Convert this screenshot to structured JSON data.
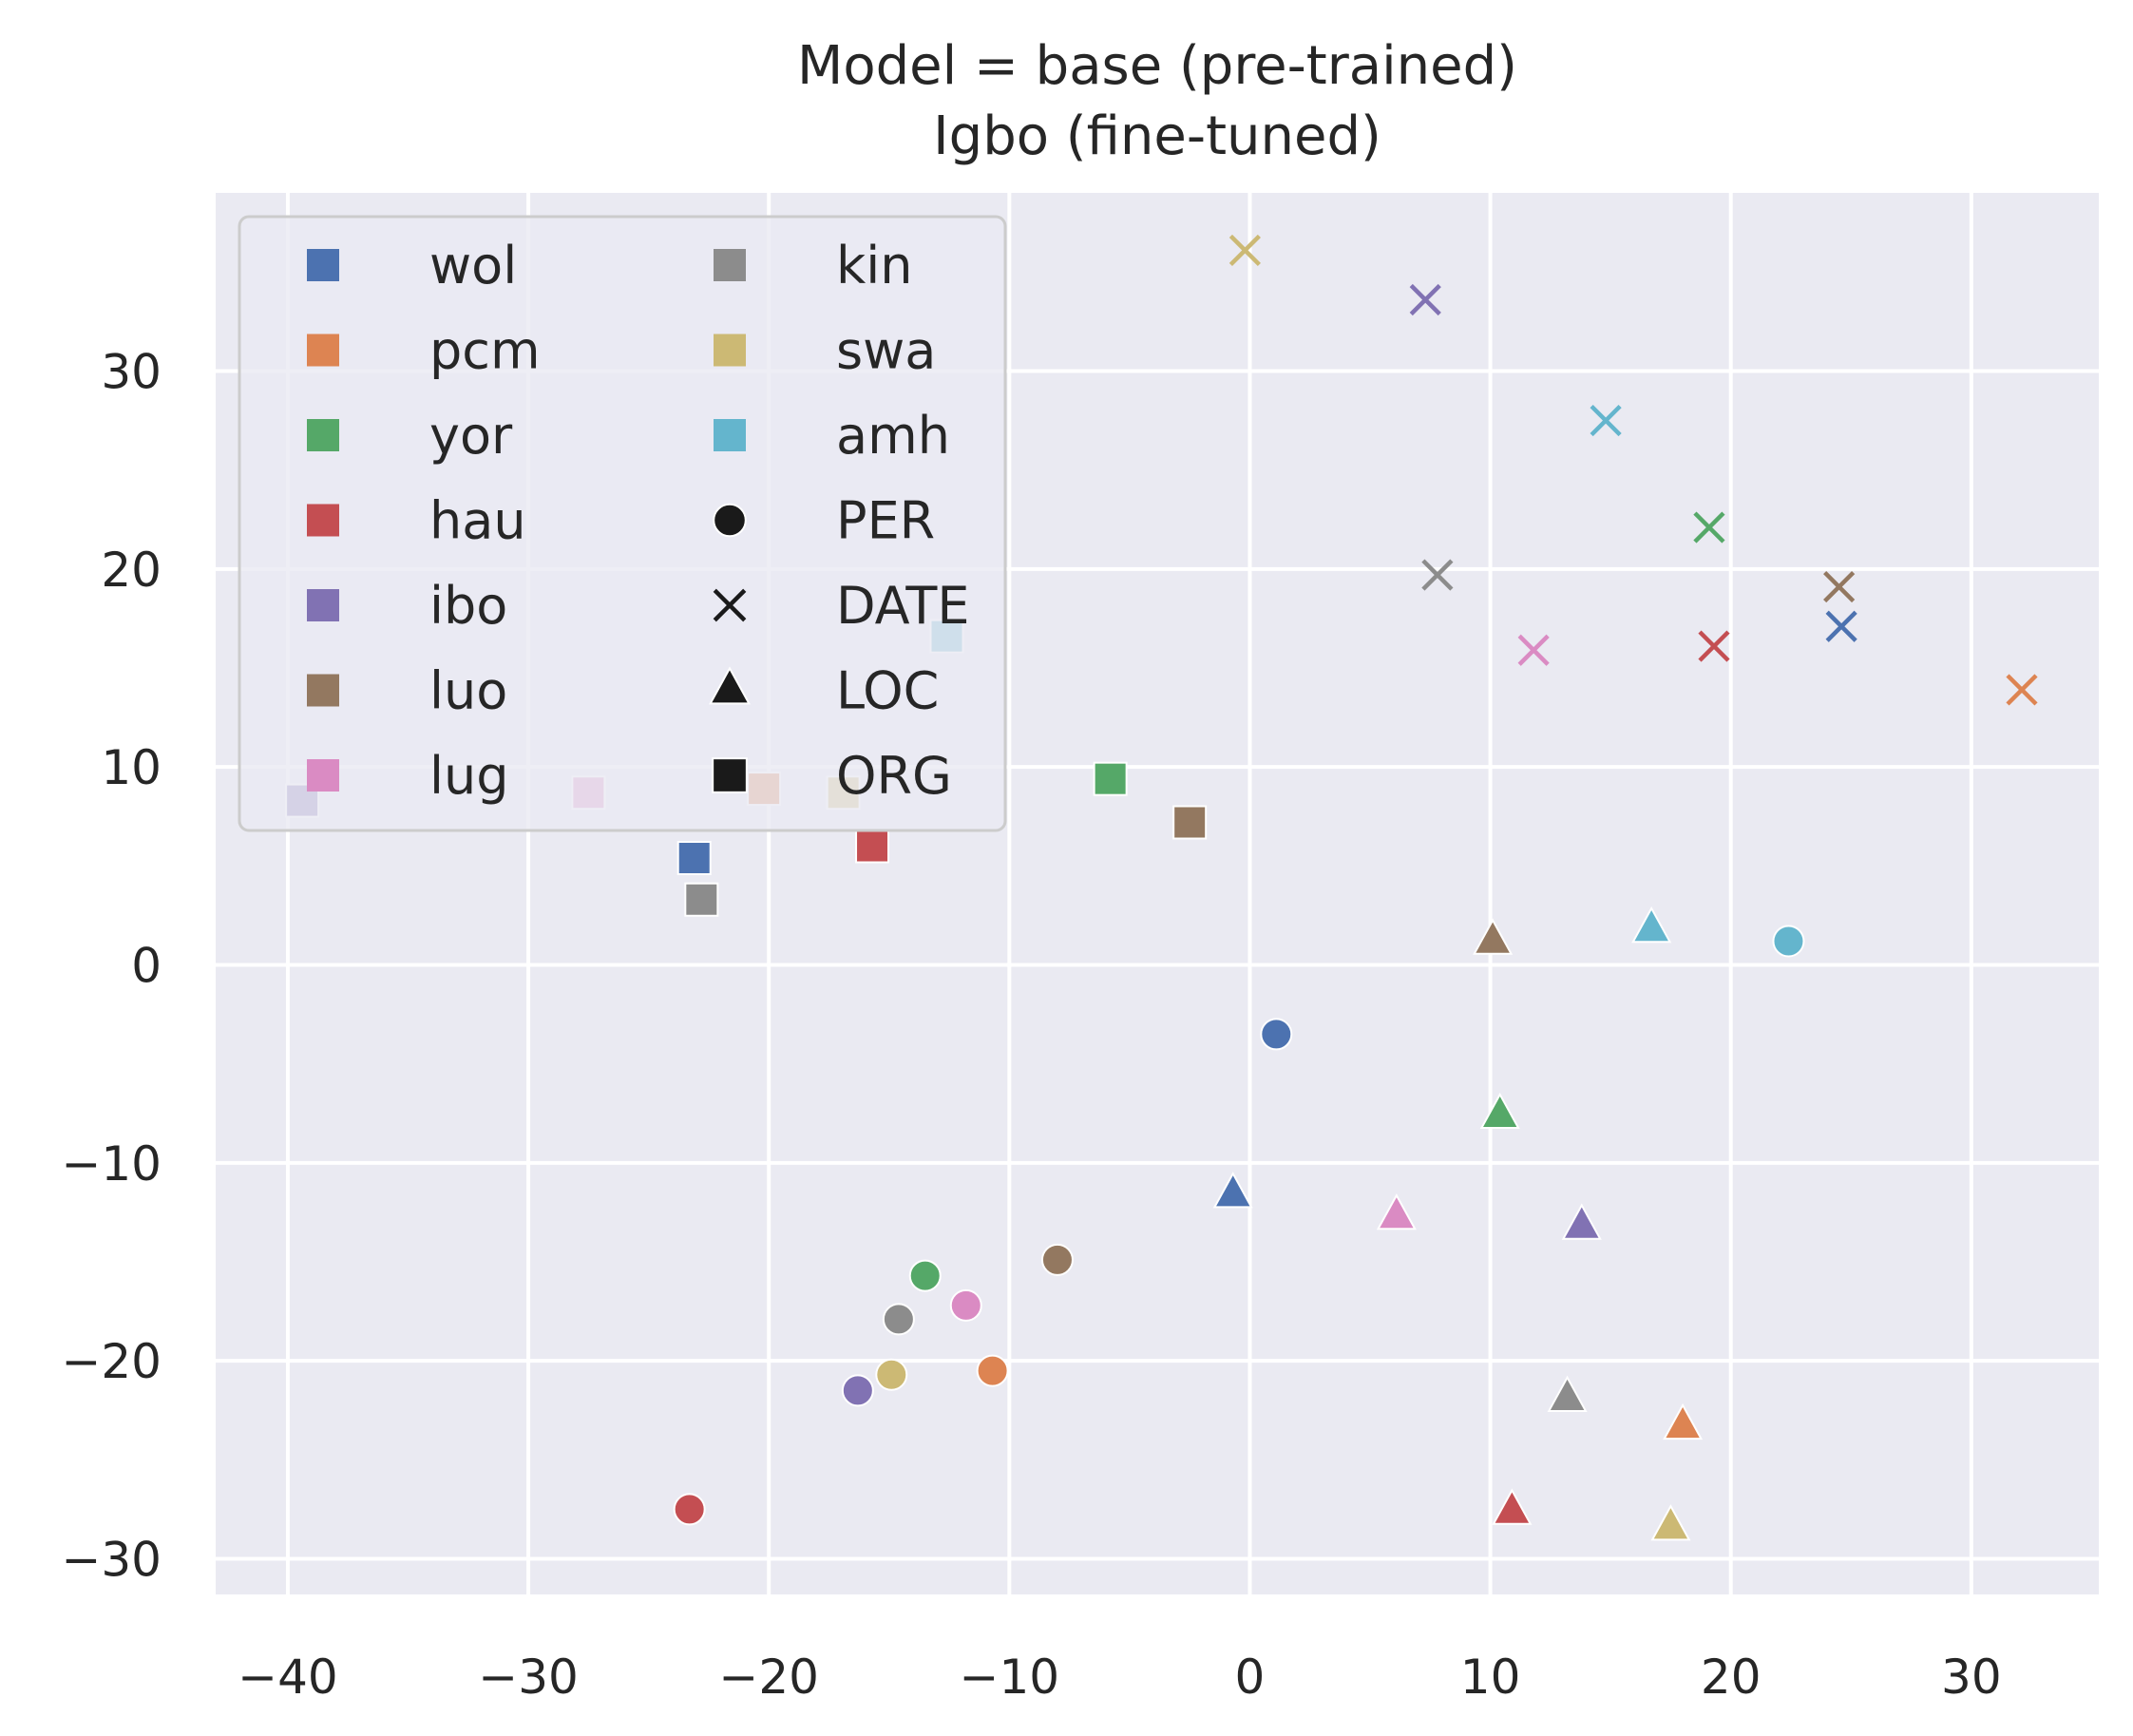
{
  "chart_data": {
    "type": "scatter",
    "title": "Model = base (pre-trained)\nIgbo (fine-tuned)",
    "xlabel": "",
    "ylabel": "",
    "xlim": [
      -43,
      35.3
    ],
    "ylim": [
      -31.8,
      39
    ],
    "xticks": [
      -40,
      -30,
      -20,
      -10,
      0,
      10,
      20,
      30
    ],
    "yticks": [
      -30,
      -20,
      -10,
      0,
      10,
      20,
      30
    ],
    "grid": true,
    "legend_position": "top-left",
    "legend": {
      "columns": 2,
      "languages": [
        {
          "label": "wol",
          "color": "#4c72b0"
        },
        {
          "label": "pcm",
          "color": "#dd8452"
        },
        {
          "label": "yor",
          "color": "#55a868"
        },
        {
          "label": "hau",
          "color": "#c44e52"
        },
        {
          "label": "ibo",
          "color": "#8172b3"
        },
        {
          "label": "luo",
          "color": "#937860"
        },
        {
          "label": "lug",
          "color": "#da8bc3"
        },
        {
          "label": "kin",
          "color": "#8c8c8c"
        },
        {
          "label": "swa",
          "color": "#ccb974"
        },
        {
          "label": "amh",
          "color": "#64b5cd"
        }
      ],
      "entity_types": [
        {
          "label": "PER",
          "marker": "circle"
        },
        {
          "label": "DATE",
          "marker": "x"
        },
        {
          "label": "LOC",
          "marker": "triangle"
        },
        {
          "label": "ORG",
          "marker": "square"
        }
      ]
    },
    "points": [
      {
        "lang": "wol",
        "type": "PER",
        "x": 1.1,
        "y": -3.5
      },
      {
        "lang": "pcm",
        "type": "PER",
        "x": -10.7,
        "y": -20.5
      },
      {
        "lang": "yor",
        "type": "PER",
        "x": -13.5,
        "y": -15.7
      },
      {
        "lang": "hau",
        "type": "PER",
        "x": -23.3,
        "y": -27.5
      },
      {
        "lang": "ibo",
        "type": "PER",
        "x": -16.3,
        "y": -21.5
      },
      {
        "lang": "luo",
        "type": "PER",
        "x": -8,
        "y": -14.9
      },
      {
        "lang": "lug",
        "type": "PER",
        "x": -11.8,
        "y": -17.2
      },
      {
        "lang": "kin",
        "type": "PER",
        "x": -14.6,
        "y": -17.9
      },
      {
        "lang": "swa",
        "type": "PER",
        "x": -14.9,
        "y": -20.7
      },
      {
        "lang": "amh",
        "type": "PER",
        "x": 22.4,
        "y": 1.2
      },
      {
        "lang": "wol",
        "type": "DATE",
        "x": 24.6,
        "y": 17.1
      },
      {
        "lang": "pcm",
        "type": "DATE",
        "x": 32.1,
        "y": 13.9
      },
      {
        "lang": "yor",
        "type": "DATE",
        "x": 19.1,
        "y": 22.1
      },
      {
        "lang": "hau",
        "type": "DATE",
        "x": 19.3,
        "y": 16.1
      },
      {
        "lang": "ibo",
        "type": "DATE",
        "x": 7.3,
        "y": 33.6
      },
      {
        "lang": "luo",
        "type": "DATE",
        "x": 24.5,
        "y": 19.1
      },
      {
        "lang": "lug",
        "type": "DATE",
        "x": 11.8,
        "y": 15.9
      },
      {
        "lang": "kin",
        "type": "DATE",
        "x": 7.8,
        "y": 19.7
      },
      {
        "lang": "swa",
        "type": "DATE",
        "x": -0.2,
        "y": 36.1
      },
      {
        "lang": "amh",
        "type": "DATE",
        "x": 14.8,
        "y": 27.5
      },
      {
        "lang": "wol",
        "type": "LOC",
        "x": -0.7,
        "y": -11.6
      },
      {
        "lang": "pcm",
        "type": "LOC",
        "x": 18,
        "y": -23.3
      },
      {
        "lang": "yor",
        "type": "LOC",
        "x": 10.4,
        "y": -7.6
      },
      {
        "lang": "hau",
        "type": "LOC",
        "x": 10.9,
        "y": -27.6
      },
      {
        "lang": "ibo",
        "type": "LOC",
        "x": 13.8,
        "y": -13.2
      },
      {
        "lang": "luo",
        "type": "LOC",
        "x": 10.1,
        "y": 1.2
      },
      {
        "lang": "lug",
        "type": "LOC",
        "x": 6.1,
        "y": -12.7
      },
      {
        "lang": "kin",
        "type": "LOC",
        "x": 13.2,
        "y": -21.9
      },
      {
        "lang": "swa",
        "type": "LOC",
        "x": 17.5,
        "y": -28.4
      },
      {
        "lang": "amh",
        "type": "LOC",
        "x": 16.7,
        "y": 1.8
      },
      {
        "lang": "wol",
        "type": "ORG",
        "x": -23.1,
        "y": 5.4
      },
      {
        "lang": "pcm",
        "type": "ORG",
        "x": -20.2,
        "y": 8.9
      },
      {
        "lang": "yor",
        "type": "ORG",
        "x": -5.8,
        "y": 9.4
      },
      {
        "lang": "hau",
        "type": "ORG",
        "x": -15.7,
        "y": 6
      },
      {
        "lang": "ibo",
        "type": "ORG",
        "x": -39.4,
        "y": 8.3
      },
      {
        "lang": "luo",
        "type": "ORG",
        "x": -2.5,
        "y": 7.2
      },
      {
        "lang": "lug",
        "type": "ORG",
        "x": -27.5,
        "y": 8.7
      },
      {
        "lang": "kin",
        "type": "ORG",
        "x": -22.8,
        "y": 3.3
      },
      {
        "lang": "swa",
        "type": "ORG",
        "x": -16.9,
        "y": 8.7
      },
      {
        "lang": "amh",
        "type": "ORG",
        "x": -12.6,
        "y": 16.6
      }
    ]
  }
}
